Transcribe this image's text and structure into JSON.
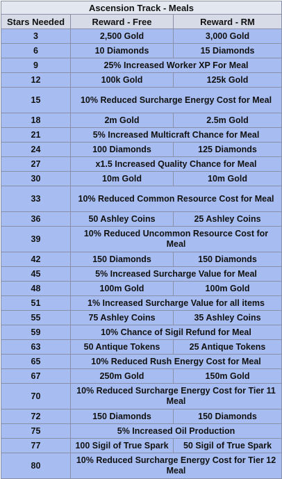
{
  "title": "Ascension Track - Meals",
  "headers": [
    "Stars Needed",
    "Reward - Free",
    "Reward - RM"
  ],
  "rows": [
    {
      "stars": "3",
      "free": "2,500 Gold",
      "rm": "3,000 Gold"
    },
    {
      "stars": "6",
      "free": "10 Diamonds",
      "rm": "15 Diamonds"
    },
    {
      "stars": "9",
      "merged": "25% Increased Worker XP For Meal"
    },
    {
      "stars": "12",
      "free": "100k Gold",
      "rm": "125k Gold"
    },
    {
      "stars": "15",
      "merged": "10% Reduced Surcharge Energy Cost for Meal",
      "tall": true
    },
    {
      "stars": "18",
      "free": "2m Gold",
      "rm": "2.5m Gold"
    },
    {
      "stars": "21",
      "merged": "5% Increased Multicraft Chance for Meal"
    },
    {
      "stars": "24",
      "free": "100 Diamonds",
      "rm": "125 Diamonds"
    },
    {
      "stars": "27",
      "merged": "x1.5 Increased Quality Chance for Meal"
    },
    {
      "stars": "30",
      "free": "10m Gold",
      "rm": "10m Gold"
    },
    {
      "stars": "33",
      "merged": "10% Reduced Common Resource Cost for Meal",
      "tall": true
    },
    {
      "stars": "36",
      "free": "50 Ashley Coins",
      "rm": "25 Ashley Coins"
    },
    {
      "stars": "39",
      "merged": "10% Reduced Uncommon Resource Cost for Meal",
      "tall": true
    },
    {
      "stars": "42",
      "free": "150 Diamonds",
      "rm": "150 Diamonds"
    },
    {
      "stars": "45",
      "merged": "5% Increased Surcharge Value for Meal"
    },
    {
      "stars": "48",
      "free": "100m Gold",
      "rm": "100m Gold"
    },
    {
      "stars": "51",
      "merged": "1% Increased Surcharge Value for all items"
    },
    {
      "stars": "55",
      "free": "75 Ashley Coins",
      "rm": "35 Ashley Coins"
    },
    {
      "stars": "59",
      "merged": "10% Chance of Sigil Refund for Meal"
    },
    {
      "stars": "63",
      "free": "50 Antique Tokens",
      "rm": "25 Antique Tokens"
    },
    {
      "stars": "65",
      "merged": "10% Reduced Rush Energy Cost for Meal"
    },
    {
      "stars": "67",
      "free": "250m Gold",
      "rm": "150m Gold"
    },
    {
      "stars": "70",
      "merged": "10% Reduced Surcharge Energy Cost for Tier 11 Meal",
      "tall": true
    },
    {
      "stars": "72",
      "free": "150 Diamonds",
      "rm": "150 Diamonds"
    },
    {
      "stars": "75",
      "merged": "5% Increased Oil Production"
    },
    {
      "stars": "77",
      "free": "100 Sigil of True Spark",
      "rm": "50 Sigil of True Spark"
    },
    {
      "stars": "80",
      "merged": "10% Reduced Surcharge Energy Cost for Tier 12 Meal",
      "tall": true
    }
  ]
}
